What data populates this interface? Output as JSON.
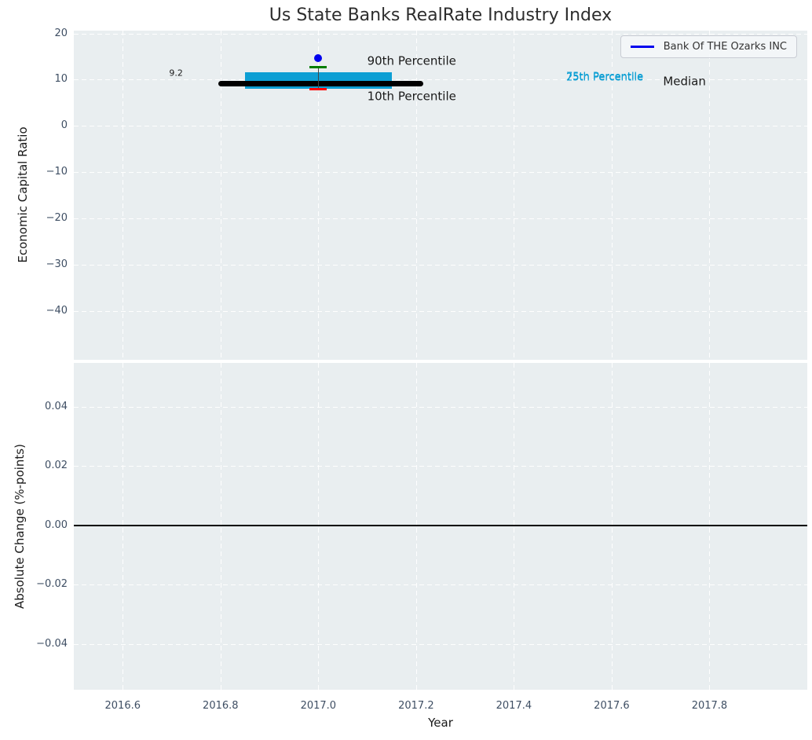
{
  "title": "Us State Banks RealRate Industry Index",
  "legend": {
    "label": "Bank Of THE Ozarks INC",
    "line_color": "#0000ee"
  },
  "colors": {
    "axes_background": "#e9eef0",
    "grid": "#ffffff",
    "tick_label": "#3e4e63",
    "median_line": "#000000",
    "iqr_band": "#0d9fd4",
    "p90_cap": "#007d00",
    "p10_cap": "#ff0000",
    "whisker": "#444444",
    "company_point": "#0000ee",
    "zero_line": "#000000"
  },
  "chart_data": [
    {
      "type": "box-timeline",
      "panel": "top",
      "title": "Us State Banks RealRate Industry Index",
      "ylabel": "Economic Capital Ratio",
      "xlim": [
        2016.5,
        2018.0
      ],
      "ylim": [
        -50.6,
        20.6
      ],
      "grid": "white dashed",
      "legend_position": "upper right",
      "yticks": [
        {
          "v": 20,
          "label": "20"
        },
        {
          "v": 10,
          "label": "10"
        },
        {
          "v": 0,
          "label": "0"
        },
        {
          "v": -10,
          "label": "−10"
        },
        {
          "v": -20,
          "label": "−20"
        },
        {
          "v": -30,
          "label": "−30"
        },
        {
          "v": -40,
          "label": "−40"
        }
      ],
      "series": {
        "year": 2017.0,
        "median": {
          "value": 9.2,
          "x_start": 2016.8,
          "x_end": 2017.21
        },
        "iqr_band": {
          "p25": 8.1,
          "p75": 11.6,
          "x_start": 2016.85,
          "x_end": 2017.15
        },
        "whisker": {
          "p10": 8.0,
          "p90": 12.7
        },
        "company_point": {
          "name": "Bank Of THE Ozarks INC",
          "value": 14.6
        }
      },
      "annotations": [
        {
          "name": "median-value-label",
          "text": "9.2",
          "x": 2016.695,
          "y": 11.3,
          "color": "#1a1a1a",
          "size": 11
        },
        {
          "name": "p90-label",
          "text": "90th Percentile",
          "x": 2017.1,
          "y": 13.9,
          "color": "#1a1a1a",
          "size": 15
        },
        {
          "name": "p10-label",
          "text": "10th Percentile",
          "x": 2017.1,
          "y": 6.4,
          "color": "#1a1a1a",
          "size": 15
        },
        {
          "name": "p75-label",
          "text": "75th Percentile",
          "x": 2017.507,
          "y": 10.4,
          "color": "#0d9fd4",
          "size": 13
        },
        {
          "name": "p25-label",
          "text": "25th Percentile",
          "x": 2017.507,
          "y": 10.2,
          "color": "#0d9fd4",
          "size": 13
        },
        {
          "name": "median-label",
          "text": "Median",
          "x": 2017.705,
          "y": 9.5,
          "color": "#1a1a1a",
          "size": 15
        }
      ]
    },
    {
      "type": "line",
      "panel": "bottom",
      "ylabel": "Absolute Change (%-points)",
      "xlabel": "Year",
      "xlim": [
        2016.5,
        2018.0
      ],
      "ylim": [
        -0.0554,
        0.0548
      ],
      "grid": "white dashed",
      "yticks": [
        {
          "v": 0.04,
          "label": "0.04"
        },
        {
          "v": 0.02,
          "label": "0.02"
        },
        {
          "v": 0.0,
          "label": "0.00"
        },
        {
          "v": -0.02,
          "label": "−0.02"
        },
        {
          "v": -0.04,
          "label": "−0.04"
        }
      ],
      "xticks": [
        {
          "v": 2016.6,
          "label": "2016.6"
        },
        {
          "v": 2016.8,
          "label": "2016.8"
        },
        {
          "v": 2017.0,
          "label": "2017.0"
        },
        {
          "v": 2017.2,
          "label": "2017.2"
        },
        {
          "v": 2017.4,
          "label": "2017.4"
        },
        {
          "v": 2017.6,
          "label": "2017.6"
        },
        {
          "v": 2017.8,
          "label": "2017.8"
        }
      ],
      "zero_line": 0.0,
      "values": []
    }
  ]
}
